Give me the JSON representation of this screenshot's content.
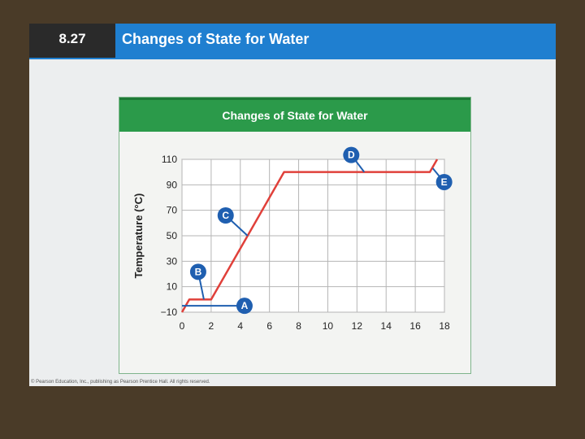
{
  "slide": {
    "figure_number": "8.27",
    "title": "Changes of State for Water",
    "footer": "© Pearson Education, Inc., publishing as Pearson Prentice Hall. All rights reserved."
  },
  "colors": {
    "header_blue": "#1f7fd0",
    "panel_green": "#2b9a4a",
    "line_red": "#e0403a",
    "marker_blue": "#1f5fb0"
  },
  "chart_data": {
    "type": "line",
    "title": "Changes of State for Water",
    "ylabel": "Temperature (°C)",
    "xlabel": "",
    "xlim": [
      0,
      18
    ],
    "ylim": [
      -10,
      110
    ],
    "x_ticks": [
      0,
      2,
      4,
      6,
      8,
      10,
      12,
      14,
      16,
      18
    ],
    "y_ticks": [
      -10,
      10,
      30,
      50,
      70,
      90,
      110
    ],
    "y_tick_labels": [
      "−10",
      "10",
      "30",
      "50",
      "70",
      "90",
      "110"
    ],
    "grid": true,
    "series": [
      {
        "x": [
          0,
          0.5,
          2.0,
          7.0,
          17.0,
          17.5
        ],
        "y": [
          -10,
          0,
          0,
          100,
          100,
          110
        ]
      }
    ],
    "annotations": [
      {
        "label": "A",
        "x": 1.0,
        "y": -5
      },
      {
        "label": "B",
        "x": 1.5,
        "y": 0
      },
      {
        "label": "C",
        "x": 4.5,
        "y": 50
      },
      {
        "label": "D",
        "x": 12.5,
        "y": 100
      },
      {
        "label": "E",
        "x": 17.2,
        "y": 103
      }
    ]
  }
}
